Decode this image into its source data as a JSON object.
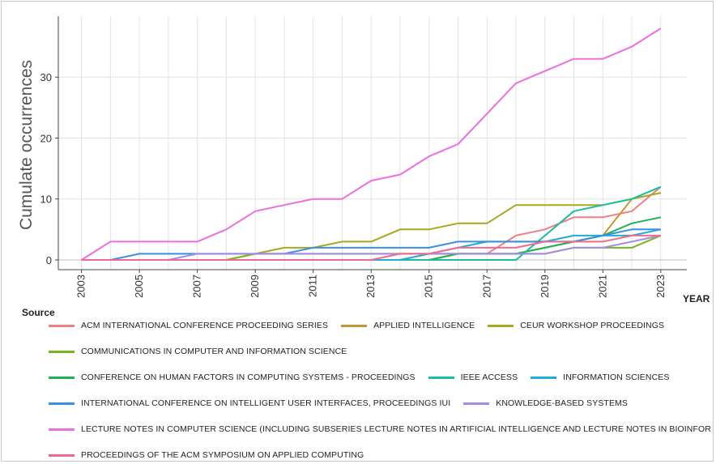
{
  "chart_data": {
    "type": "line",
    "title": "",
    "xlabel": "YEAR",
    "ylabel": "Cumulate occurrences",
    "xlim": [
      2002.2,
      2023.9
    ],
    "ylim": [
      -1.6,
      40
    ],
    "x_ticks": [
      2003,
      2005,
      2007,
      2009,
      2011,
      2013,
      2015,
      2017,
      2019,
      2021,
      2023
    ],
    "y_ticks": [
      0,
      10,
      20,
      30
    ],
    "grid": true,
    "legend_title": "Source",
    "legend_position": "bottom",
    "x": [
      2003,
      2004,
      2005,
      2006,
      2007,
      2008,
      2009,
      2010,
      2011,
      2012,
      2013,
      2014,
      2015,
      2016,
      2017,
      2018,
      2019,
      2020,
      2021,
      2022,
      2023
    ],
    "series": [
      {
        "name": "ACM INTERNATIONAL CONFERENCE PROCEEDING SERIES",
        "color": "#f08080",
        "values": [
          0,
          0,
          0,
          0,
          0,
          0,
          0,
          0,
          0,
          0,
          0,
          0,
          1,
          1,
          1,
          4,
          5,
          7,
          7,
          8,
          12
        ]
      },
      {
        "name": "APPLIED  INTELLIGENCE",
        "color": "#c8962e",
        "values": [
          0,
          0,
          0,
          0,
          0,
          0,
          0,
          0,
          0,
          0,
          0,
          0,
          0,
          1,
          1,
          1,
          2,
          3,
          4,
          10,
          11
        ]
      },
      {
        "name": "CEUR WORKSHOP PROCEEDINGS",
        "color": "#a8a81e",
        "values": [
          0,
          0,
          0,
          0,
          0,
          0,
          1,
          2,
          2,
          3,
          3,
          5,
          5,
          6,
          6,
          9,
          9,
          9,
          9,
          10,
          11
        ]
      },
      {
        "name": "COMMUNICATIONS IN COMPUTER AND INFORMATION SCIENCE",
        "color": "#76b51e",
        "values": [
          0,
          0,
          0,
          0,
          0,
          0,
          1,
          1,
          1,
          1,
          1,
          1,
          1,
          1,
          1,
          1,
          1,
          2,
          2,
          2,
          4
        ]
      },
      {
        "name": "CONFERENCE ON HUMAN FACTORS IN COMPUTING SYSTEMS - PROCEEDINGS",
        "color": "#1bb354",
        "values": [
          0,
          0,
          0,
          0,
          0,
          0,
          0,
          0,
          0,
          0,
          0,
          0,
          0,
          1,
          1,
          1,
          2,
          3,
          4,
          6,
          7
        ]
      },
      {
        "name": "IEEE ACCESS",
        "color": "#17bfa0",
        "values": [
          0,
          0,
          0,
          0,
          0,
          0,
          0,
          0,
          0,
          0,
          0,
          0,
          0,
          0,
          0,
          0,
          4,
          8,
          9,
          10,
          12
        ]
      },
      {
        "name": "INFORMATION SCIENCES",
        "color": "#1aaed8",
        "values": [
          0,
          0,
          0,
          0,
          0,
          0,
          0,
          0,
          0,
          0,
          0,
          0,
          1,
          2,
          3,
          3,
          3,
          4,
          4,
          4,
          5
        ]
      },
      {
        "name": "INTERNATIONAL CONFERENCE ON INTELLIGENT USER INTERFACES, PROCEEDINGS IUI",
        "color": "#3a8fe0",
        "values": [
          0,
          0,
          1,
          1,
          1,
          1,
          1,
          1,
          2,
          2,
          2,
          2,
          2,
          3,
          3,
          3,
          3,
          3,
          4,
          5,
          5
        ]
      },
      {
        "name": "KNOWLEDGE-BASED SYSTEMS",
        "color": "#a48be6",
        "values": [
          0,
          0,
          0,
          0,
          1,
          1,
          1,
          1,
          1,
          1,
          1,
          1,
          1,
          1,
          1,
          1,
          1,
          2,
          2,
          3,
          4
        ]
      },
      {
        "name": "LECTURE NOTES IN COMPUTER SCIENCE (INCLUDING SUBSERIES LECTURE NOTES IN ARTIFICIAL INTELLIGENCE AND LECTURE NOTES IN BIOINFOR",
        "color": "#ea6fe0",
        "values": [
          0,
          3,
          3,
          3,
          3,
          5,
          8,
          9,
          10,
          10,
          13,
          14,
          17,
          19,
          24,
          29,
          31,
          33,
          33,
          35,
          38
        ]
      },
      {
        "name": "PROCEEDINGS OF THE ACM SYMPOSIUM ON APPLIED COMPUTING",
        "color": "#f2698f",
        "values": [
          0,
          0,
          0,
          0,
          0,
          0,
          0,
          0,
          0,
          0,
          0,
          1,
          1,
          2,
          2,
          2,
          3,
          3,
          3,
          4,
          4
        ]
      }
    ]
  }
}
